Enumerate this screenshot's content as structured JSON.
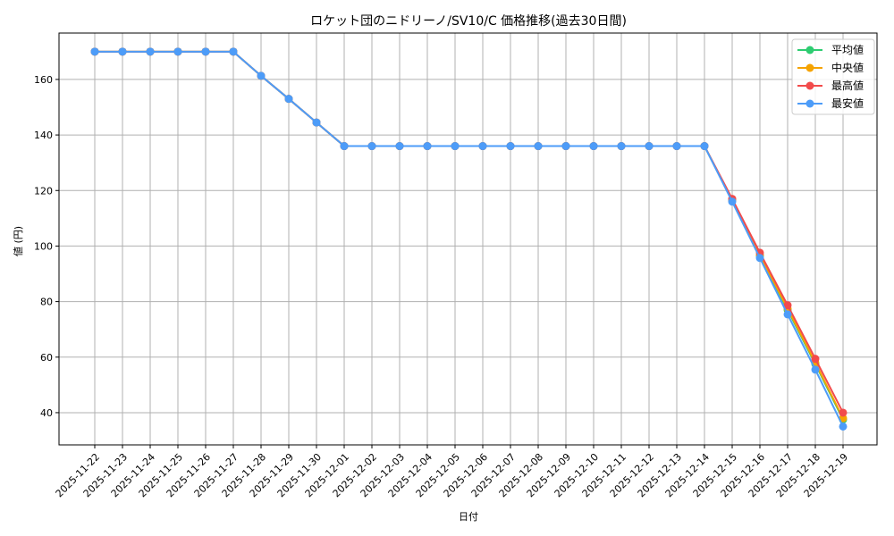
{
  "chart_data": {
    "type": "line",
    "title": "ロケット団のニドリーノ/SV10/C 価格推移(過去30日間)",
    "xlabel": "日付",
    "ylabel": "値 (円)",
    "ylim": [
      28.4,
      176.7
    ],
    "yticks": [
      40,
      60,
      80,
      100,
      120,
      140,
      160
    ],
    "grid": true,
    "legend_position": "upper right",
    "categories": [
      "2025-11-22",
      "2025-11-23",
      "2025-11-24",
      "2025-11-25",
      "2025-11-26",
      "2025-11-27",
      "2025-11-28",
      "2025-11-29",
      "2025-11-30",
      "2025-12-01",
      "2025-12-02",
      "2025-12-03",
      "2025-12-04",
      "2025-12-05",
      "2025-12-06",
      "2025-12-07",
      "2025-12-08",
      "2025-12-09",
      "2025-12-10",
      "2025-12-11",
      "2025-12-12",
      "2025-12-13",
      "2025-12-14",
      "2025-12-15",
      "2025-12-16",
      "2025-12-17",
      "2025-12-18",
      "2025-12-19"
    ],
    "series": [
      {
        "name": "平均値",
        "color": "#2ecc71",
        "values": [
          170,
          170,
          170,
          170,
          170,
          170,
          161.3,
          153,
          144.5,
          136,
          136,
          136,
          136,
          136,
          136,
          136,
          136,
          136,
          136,
          136,
          136,
          136,
          136,
          116.5,
          96.5,
          77,
          57.5,
          37.5
        ]
      },
      {
        "name": "中央値",
        "color": "#f5a300",
        "values": [
          170,
          170,
          170,
          170,
          170,
          170,
          161.3,
          153,
          144.5,
          136,
          136,
          136,
          136,
          136,
          136,
          136,
          136,
          136,
          136,
          136,
          136,
          136,
          136,
          116.5,
          96.8,
          77.5,
          58,
          38
        ]
      },
      {
        "name": "最高値",
        "color": "#f24b4b",
        "values": [
          170,
          170,
          170,
          170,
          170,
          170,
          161.3,
          153,
          144.5,
          136,
          136,
          136,
          136,
          136,
          136,
          136,
          136,
          136,
          136,
          136,
          136,
          136,
          136,
          117,
          97.6,
          78.7,
          59.4,
          40
        ]
      },
      {
        "name": "最安値",
        "color": "#4d9cf8",
        "values": [
          170,
          170,
          170,
          170,
          170,
          170,
          161.3,
          153,
          144.5,
          136,
          136,
          136,
          136,
          136,
          136,
          136,
          136,
          136,
          136,
          136,
          136,
          136,
          136,
          116,
          95.7,
          75.4,
          55.5,
          35
        ]
      }
    ]
  }
}
